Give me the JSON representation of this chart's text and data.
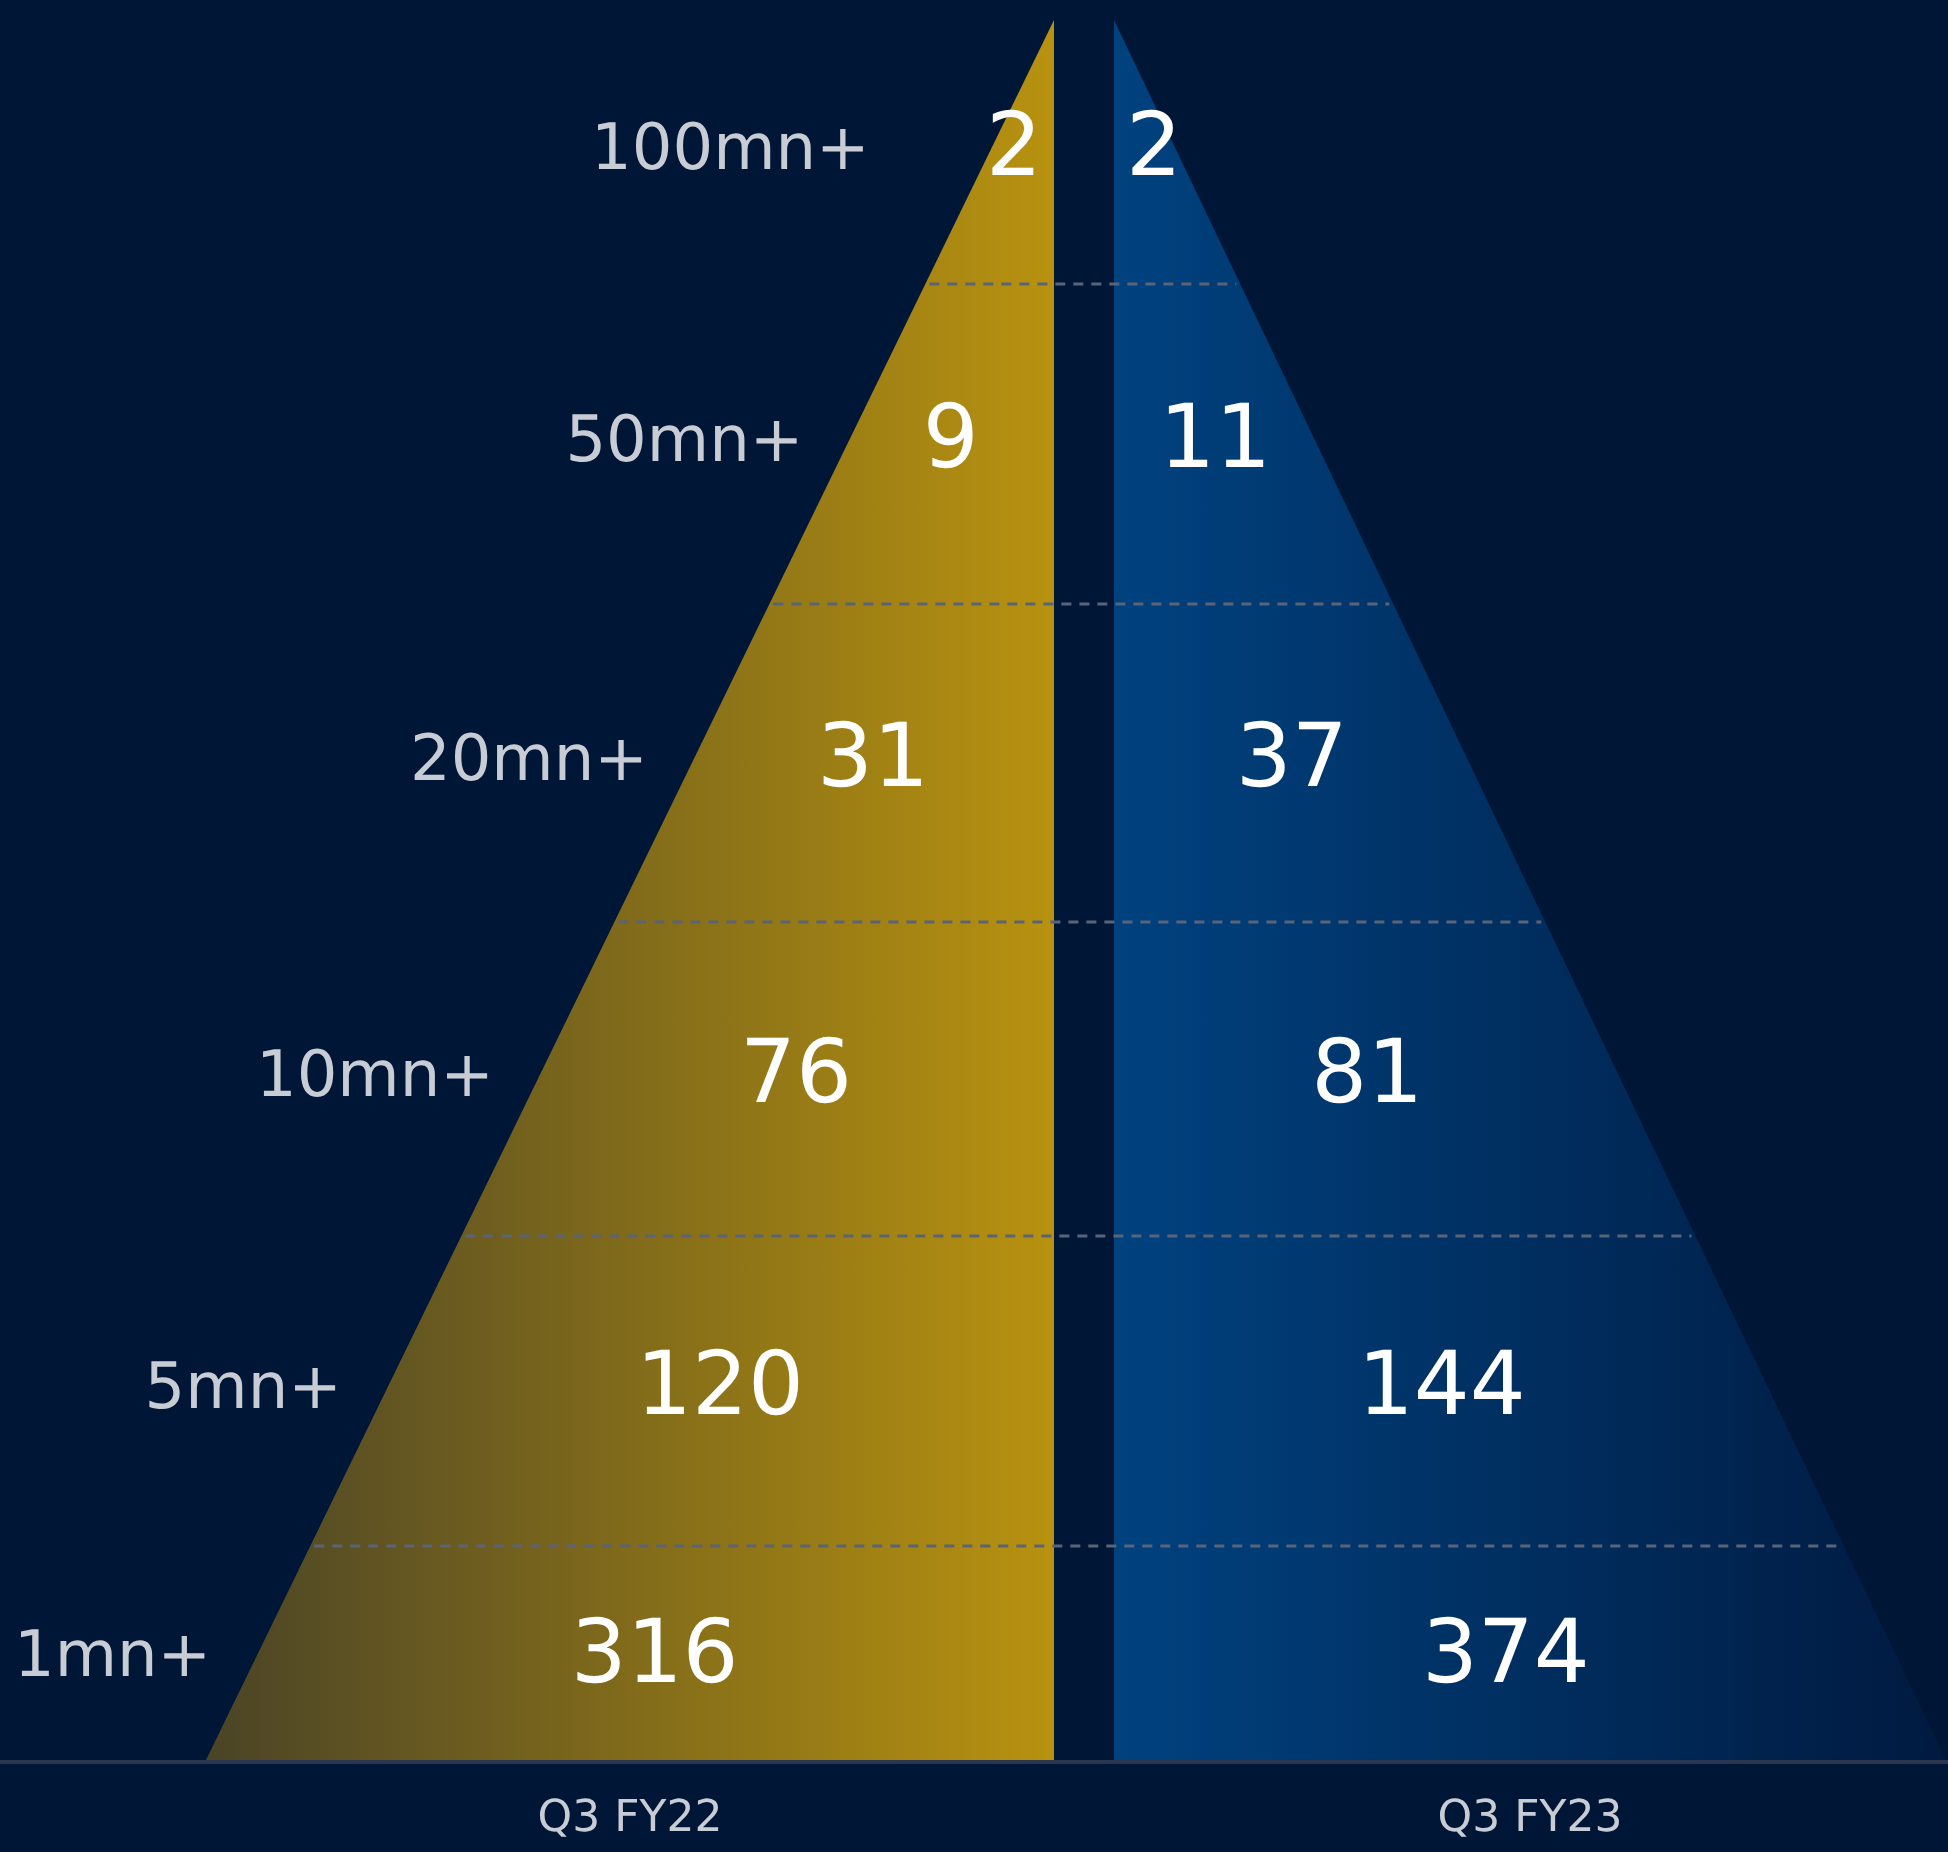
{
  "chart_data": {
    "type": "other",
    "categories": [
      "100mn+",
      "50mn+",
      "20mn+",
      "10mn+",
      "5mn+",
      "1mn+"
    ],
    "series": [
      {
        "name": "Q3 FY22",
        "color": "#b8920f",
        "values": [
          2,
          9,
          31,
          76,
          120,
          316
        ]
      },
      {
        "name": "Q3 FY23",
        "color": "#00427f",
        "values": [
          2,
          11,
          37,
          81,
          144,
          374
        ]
      }
    ],
    "data_labels": true
  }
}
